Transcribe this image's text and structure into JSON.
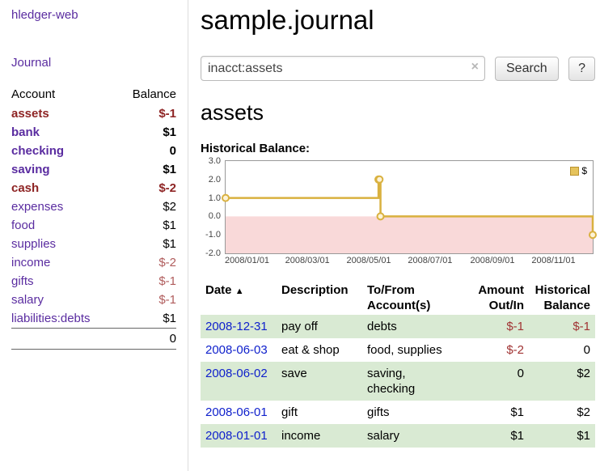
{
  "app": {
    "brand": "hledger-web"
  },
  "colors": {
    "accent_purple": "#5a2ca0",
    "negative_red": "#8e2424",
    "soft_red": "#b05c5c",
    "table_negative_red": "#a13434",
    "date_link_blue": "#1021cc",
    "row_green": "#d9ead3",
    "chart_line_gold": "#d9b13f",
    "chart_negative_region_pink": "#f9d9d9"
  },
  "sidebar": {
    "journal_link": "Journal",
    "accounts": {
      "col_account": "Account",
      "col_balance": "Balance",
      "rows": [
        {
          "name": "assets",
          "balance": "$-1"
        },
        {
          "name": "bank",
          "balance": "$1"
        },
        {
          "name": "checking",
          "balance": "0"
        },
        {
          "name": "saving",
          "balance": "$1"
        },
        {
          "name": "cash",
          "balance": "$-2"
        },
        {
          "name": "expenses",
          "balance": "$2"
        },
        {
          "name": "food",
          "balance": "$1"
        },
        {
          "name": "supplies",
          "balance": "$1"
        },
        {
          "name": "income",
          "balance": "$-2"
        },
        {
          "name": "gifts",
          "balance": "$-1"
        },
        {
          "name": "salary",
          "balance": "$-1"
        },
        {
          "name": "liabilities:debts",
          "balance": "$1"
        }
      ],
      "total": "0"
    }
  },
  "main": {
    "title": "sample.journal",
    "search": {
      "value": "inacct:assets",
      "clear": "×",
      "submit": "Search",
      "help": "?"
    },
    "account_title": "assets",
    "chart_heading": "Historical Balance:",
    "register": {
      "headers": {
        "date": "Date",
        "sort": "▲",
        "description": "Description",
        "accounts_line1": "To/From",
        "accounts_line2": "Account(s)",
        "amount_line1": "Amount",
        "amount_line2": "Out/In",
        "balance_line1": "Historical",
        "balance_line2": "Balance"
      },
      "rows": [
        {
          "date": "2008-12-31",
          "description": "pay off",
          "accounts": "debts",
          "amount": "$-1",
          "balance": "$-1"
        },
        {
          "date": "2008-06-03",
          "description": "eat & shop",
          "accounts": "food, supplies",
          "amount": "$-2",
          "balance": "0"
        },
        {
          "date": "2008-06-02",
          "description": "save",
          "accounts": "saving,\nchecking",
          "amount": "0",
          "balance": "$2"
        },
        {
          "date": "2008-06-01",
          "description": "gift",
          "accounts": "gifts",
          "amount": "$1",
          "balance": "$2"
        },
        {
          "date": "2008-01-01",
          "description": "income",
          "accounts": "salary",
          "amount": "$1",
          "balance": "$1"
        }
      ]
    }
  },
  "chart_data": {
    "type": "line",
    "step": true,
    "title": "Historical Balance",
    "legend": [
      {
        "label": "$",
        "color": "#e5c35c"
      }
    ],
    "ylim": [
      -2,
      3
    ],
    "yticks": [
      {
        "label": "3.0",
        "value": 3
      },
      {
        "label": "2.0",
        "value": 2
      },
      {
        "label": "1.0",
        "value": 1
      },
      {
        "label": "0.0",
        "value": 0
      },
      {
        "label": "-1.0",
        "value": -1
      },
      {
        "label": "-2.0",
        "value": -2
      }
    ],
    "x_min": "2008-01-01",
    "x_max": "2008-12-31",
    "xticks": [
      {
        "label": "2008/01/01",
        "date": "2008-01-01"
      },
      {
        "label": "2008/03/01",
        "date": "2008-03-01"
      },
      {
        "label": "2008/05/01",
        "date": "2008-05-01"
      },
      {
        "label": "2008/07/01",
        "date": "2008-07-01"
      },
      {
        "label": "2008/09/01",
        "date": "2008-09-01"
      },
      {
        "label": "2008/11/01",
        "date": "2008-11-01"
      }
    ],
    "series": [
      {
        "name": "$",
        "points": [
          [
            "2008-01-01",
            1
          ],
          [
            "2008-06-01",
            2
          ],
          [
            "2008-06-02",
            2
          ],
          [
            "2008-06-03",
            0
          ],
          [
            "2008-12-31",
            -1
          ]
        ]
      }
    ],
    "colors": {
      "line": "#d9b13f",
      "marker_fill": "#fdf3d7",
      "negative_region": "#f9d9d9"
    }
  }
}
